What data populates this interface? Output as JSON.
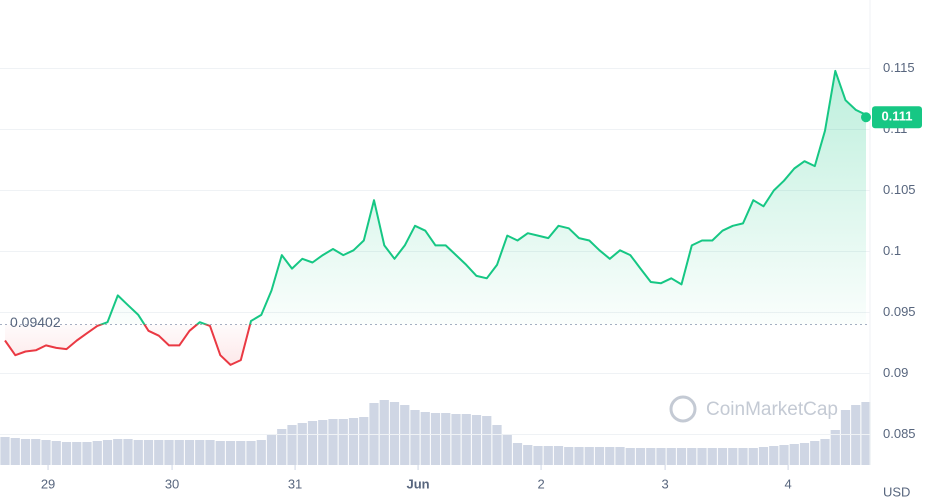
{
  "chart_data": {
    "type": "line",
    "baseline": 0.09402,
    "baseline_label": "0.09402",
    "current_price": 0.111,
    "current_label": "0.111",
    "currency": "USD",
    "watermark": "CoinMarketCap",
    "up_color": "#16c784",
    "down_color": "#ea3943",
    "xlim": [
      0,
      84
    ],
    "xticks": [
      {
        "value": 4.2,
        "label": "29"
      },
      {
        "value": 16.3,
        "label": "30"
      },
      {
        "value": 28.3,
        "label": "31"
      },
      {
        "value": 40.3,
        "label": "Jun"
      },
      {
        "value": 52.3,
        "label": "2"
      },
      {
        "value": 64.4,
        "label": "3"
      },
      {
        "value": 76.4,
        "label": "4"
      }
    ],
    "ylim": [
      0.0825,
      0.1202
    ],
    "yticks": [
      0.085,
      0.09,
      0.095,
      0.1,
      0.105,
      0.11,
      0.115
    ],
    "grid": true,
    "series": [
      {
        "name": "Price",
        "values": [
          0.0927,
          0.0915,
          0.0918,
          0.0919,
          0.0923,
          0.0921,
          0.092,
          0.0927,
          0.0933,
          0.0939,
          0.0942,
          0.0964,
          0.0956,
          0.0948,
          0.0935,
          0.0931,
          0.0923,
          0.0923,
          0.0935,
          0.0942,
          0.0939,
          0.0915,
          0.0907,
          0.0911,
          0.0943,
          0.0948,
          0.0968,
          0.0997,
          0.0986,
          0.0994,
          0.0991,
          0.0997,
          0.1002,
          0.0997,
          0.1001,
          0.1009,
          0.1042,
          0.1005,
          0.0994,
          0.1005,
          0.1021,
          0.1017,
          0.1005,
          0.1005,
          0.0997,
          0.0989,
          0.098,
          0.0978,
          0.0989,
          0.1013,
          0.1009,
          0.1015,
          0.1013,
          0.1011,
          0.1021,
          0.1019,
          0.1011,
          0.1009,
          0.1001,
          0.0994,
          0.1001,
          0.0997,
          0.0986,
          0.0975,
          0.0974,
          0.0978,
          0.0973,
          0.1005,
          0.1009,
          0.1009,
          0.1017,
          0.1021,
          0.1023,
          0.1042,
          0.1037,
          0.105,
          0.1058,
          0.1068,
          0.1074,
          0.107,
          0.1099,
          0.1148,
          0.1124,
          0.1116,
          0.1112
        ]
      }
    ],
    "volume": {
      "color": "#cfd6e4",
      "ylim": [
        0,
        100
      ],
      "values": [
        28,
        27,
        26,
        26,
        25,
        24,
        23,
        23,
        23,
        24,
        25,
        26,
        26,
        25,
        25,
        25,
        25,
        25,
        25,
        25,
        25,
        24,
        24,
        24,
        24,
        25,
        30,
        36,
        40,
        42,
        44,
        45,
        46,
        46,
        47,
        48,
        62,
        65,
        63,
        60,
        55,
        53,
        52,
        52,
        51,
        51,
        50,
        49,
        40,
        30,
        22,
        20,
        19,
        19,
        19,
        18,
        18,
        18,
        18,
        18,
        18,
        17,
        17,
        17,
        17,
        17,
        17,
        17,
        17,
        17,
        17,
        17,
        17,
        17,
        18,
        19,
        20,
        21,
        22,
        24,
        26,
        35,
        55,
        60,
        63
      ]
    }
  }
}
